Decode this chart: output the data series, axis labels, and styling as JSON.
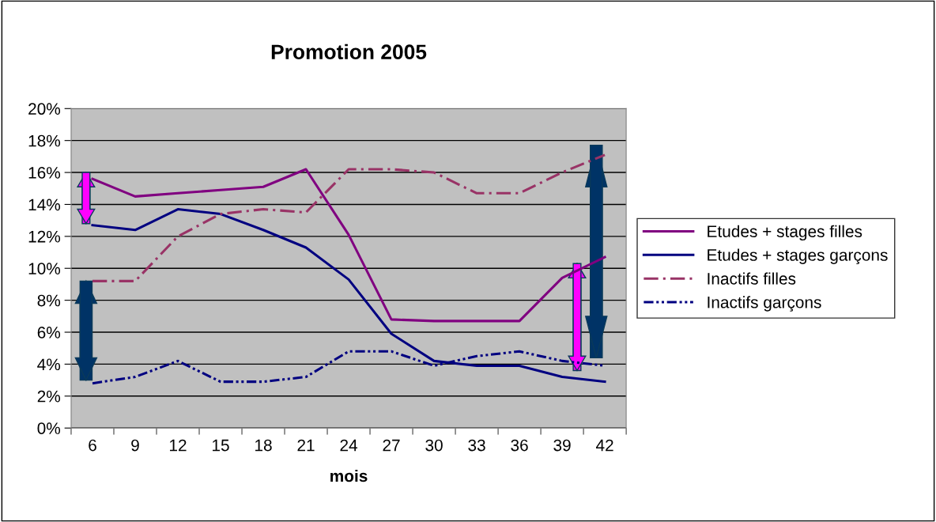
{
  "chart_data": {
    "type": "line",
    "title": "Promotion 2005",
    "xlabel": "mois",
    "categories": [
      "6",
      "9",
      "12",
      "15",
      "18",
      "21",
      "24",
      "27",
      "30",
      "33",
      "36",
      "39",
      "42"
    ],
    "series": [
      {
        "name": "Etudes + stages filles",
        "color": "#800080",
        "line_style": "solid",
        "values": [
          15.6,
          14.5,
          14.7,
          14.9,
          15.1,
          16.2,
          12.1,
          6.8,
          6.7,
          6.7,
          6.7,
          9.4,
          10.7
        ]
      },
      {
        "name": "Etudes + stages garçons",
        "color": "#000080",
        "line_style": "solid",
        "values": [
          12.7,
          12.4,
          13.7,
          13.4,
          12.4,
          11.3,
          9.3,
          5.9,
          4.2,
          3.9,
          3.9,
          3.2,
          2.9
        ]
      },
      {
        "name": "Inactifs filles",
        "color": "#993366",
        "line_style": "dashed",
        "values": [
          9.2,
          9.2,
          12.0,
          13.4,
          13.7,
          13.5,
          16.2,
          16.2,
          16.0,
          14.7,
          14.7,
          16.0,
          17.1
        ]
      },
      {
        "name": "Inactifs garçons",
        "color": "#000080",
        "line_style": "dashed",
        "values": [
          2.8,
          3.2,
          4.2,
          2.9,
          2.9,
          3.2,
          4.8,
          4.8,
          3.9,
          4.5,
          4.8,
          4.2,
          3.9
        ]
      }
    ],
    "ylim": [
      0,
      20
    ],
    "yticks": [
      {
        "value": 0,
        "label": "0%"
      },
      {
        "value": 2,
        "label": "2%"
      },
      {
        "value": 4,
        "label": "4%"
      },
      {
        "value": 6,
        "label": "6%"
      },
      {
        "value": 8,
        "label": "8%"
      },
      {
        "value": 10,
        "label": "10%"
      },
      {
        "value": 12,
        "label": "12%"
      },
      {
        "value": 14,
        "label": "14%"
      },
      {
        "value": 16,
        "label": "16%"
      },
      {
        "value": 18,
        "label": "18%"
      },
      {
        "value": 20,
        "label": "20%"
      }
    ],
    "grid": "y",
    "legend": "right",
    "marker": "none"
  }
}
